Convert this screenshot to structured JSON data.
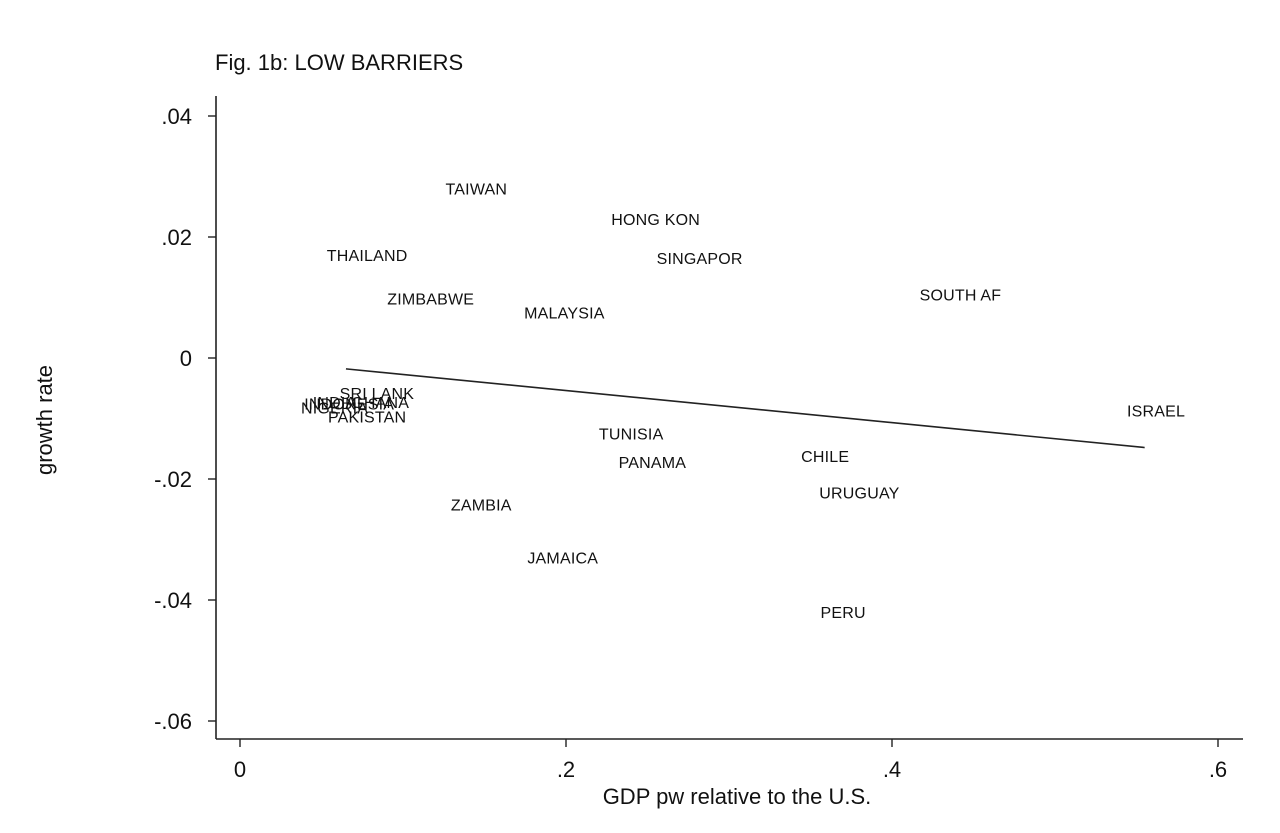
{
  "chart_data": {
    "type": "scatter",
    "title": "Fig. 1b: LOW BARRIERS",
    "xlabel": "GDP pw relative to the U.S.",
    "ylabel": "growth rate",
    "xlim": [
      -0.015,
      0.625
    ],
    "ylim": [
      -0.064,
      0.0435
    ],
    "x_ticks": [
      0,
      0.2,
      0.4,
      0.6
    ],
    "x_tick_labels": [
      "0",
      ".2",
      ".4",
      ".6"
    ],
    "y_ticks": [
      0.04,
      0.02,
      0,
      -0.02,
      -0.04,
      -0.06
    ],
    "y_tick_labels": [
      ".04",
      ".02",
      "0",
      "-.02",
      "-.04",
      "-.06"
    ],
    "grid": false,
    "legend": "none",
    "points": [
      {
        "label": "TAIWAN",
        "x": 0.145,
        "y": 0.028
      },
      {
        "label": "HONG KON",
        "x": 0.255,
        "y": 0.023
      },
      {
        "label": "THAILAND",
        "x": 0.078,
        "y": 0.017
      },
      {
        "label": "SINGAPOR",
        "x": 0.282,
        "y": 0.0165
      },
      {
        "label": "ZIMBABWE",
        "x": 0.117,
        "y": 0.0098
      },
      {
        "label": "SOUTH AF",
        "x": 0.442,
        "y": 0.0105
      },
      {
        "label": "MALAYSIA",
        "x": 0.199,
        "y": 0.0075
      },
      {
        "label": "SRI LANK",
        "x": 0.084,
        "y": -0.0058
      },
      {
        "label": "INDIA",
        "x": 0.058,
        "y": -0.0073
      },
      {
        "label": "GHANA",
        "x": 0.086,
        "y": -0.0073
      },
      {
        "label": "INDONESIA",
        "x": 0.067,
        "y": -0.0075
      },
      {
        "label": "NIGERIA",
        "x": 0.058,
        "y": -0.0082
      },
      {
        "label": "PAKISTAN",
        "x": 0.078,
        "y": -0.0097
      },
      {
        "label": "ISRAEL",
        "x": 0.562,
        "y": -0.0087
      },
      {
        "label": "TUNISIA",
        "x": 0.24,
        "y": -0.0125
      },
      {
        "label": "PANAMA",
        "x": 0.253,
        "y": -0.0172
      },
      {
        "label": "CHILE",
        "x": 0.359,
        "y": -0.0162
      },
      {
        "label": "URUGUAY",
        "x": 0.38,
        "y": -0.0222
      },
      {
        "label": "ZAMBIA",
        "x": 0.148,
        "y": -0.0242
      },
      {
        "label": "JAMAICA",
        "x": 0.198,
        "y": -0.033
      },
      {
        "label": "PERU",
        "x": 0.37,
        "y": -0.042
      }
    ],
    "fit_line": {
      "x": [
        0.065,
        0.555
      ],
      "y": [
        -0.0018,
        -0.0148
      ]
    }
  }
}
